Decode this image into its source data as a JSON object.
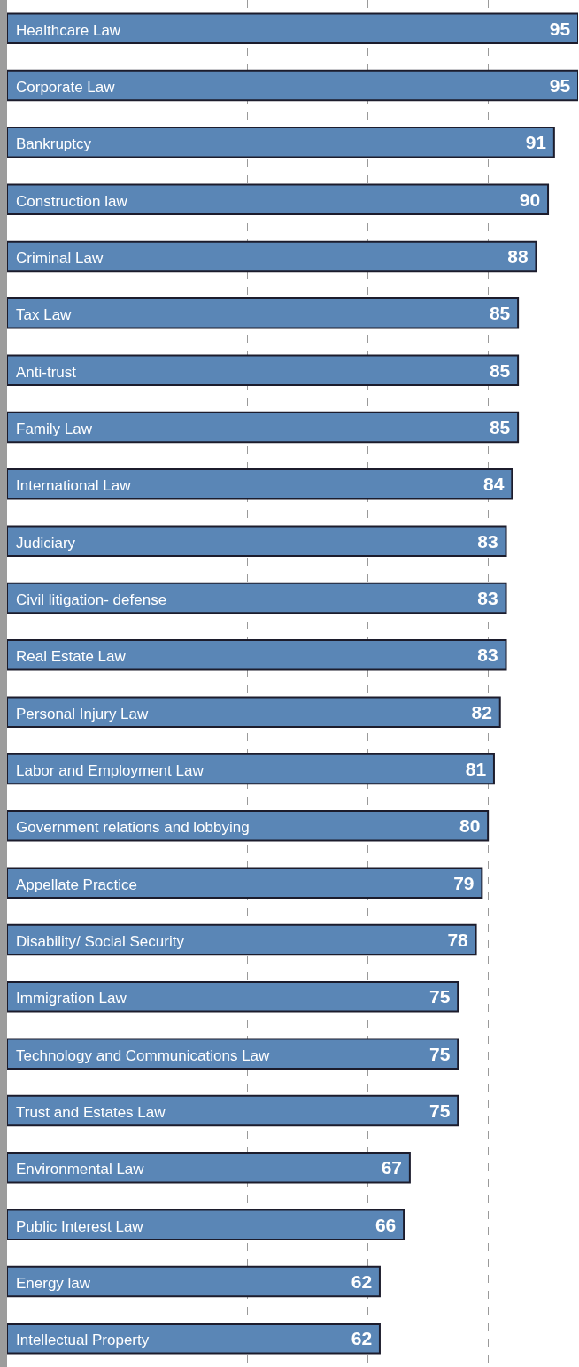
{
  "chart_data": {
    "type": "bar",
    "orientation": "horizontal",
    "categories": [
      "Healthcare Law",
      "Corporate Law",
      "Bankruptcy",
      "Construction law",
      "Criminal Law",
      "Tax Law",
      "Anti-trust",
      "Family Law",
      "International Law",
      "Judiciary",
      "Civil litigation- defense",
      "Real Estate Law",
      "Personal Injury Law",
      "Labor and Employment Law",
      "Government relations and lobbying",
      "Appellate Practice",
      "Disability/ Social Security",
      "Immigration Law",
      "Technology and Communications Law",
      "Trust and Estates Law",
      "Environmental Law",
      "Public Interest Law",
      "Energy law",
      "Intellectual Property"
    ],
    "values": [
      95,
      95,
      91,
      90,
      88,
      85,
      85,
      85,
      84,
      83,
      83,
      83,
      82,
      81,
      80,
      79,
      78,
      75,
      75,
      75,
      67,
      66,
      62,
      62
    ],
    "color": "#5a86b6",
    "xlim": [
      0,
      95
    ],
    "xticks": [
      {
        "value": 20,
        "label": null
      },
      {
        "value": 40,
        "label": null
      },
      {
        "value": 60,
        "label": null
      },
      {
        "value": 80,
        "label": null
      }
    ],
    "grid": "x",
    "data_labels": true,
    "line_style": "dashed"
  }
}
